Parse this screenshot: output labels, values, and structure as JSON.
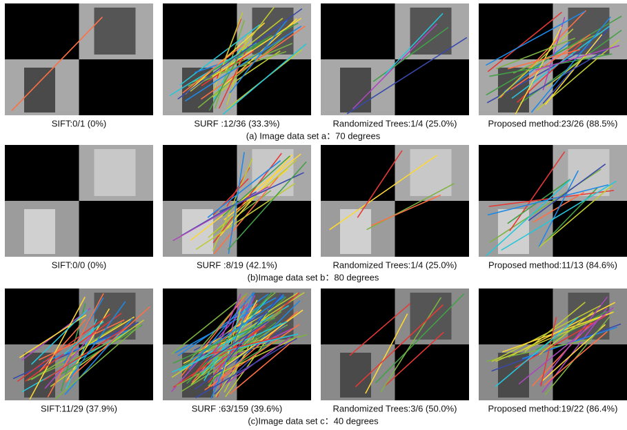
{
  "rows": [
    {
      "panels": [
        "SIFT:0/1 (0%)",
        "SURF :12/36 (33.3%)",
        "Randomized Trees:1/4 (25.0%)",
        "Proposed method:23/26 (88.5%)"
      ],
      "caption": "(a) Image data set a：70 degrees"
    },
    {
      "panels": [
        "SIFT:0/0 (0%)",
        "SURF :8/19 (42.1%)",
        "Randomized Trees:1/4 (25.0%)",
        "Proposed method:11/13 (84.6%)"
      ],
      "caption": "(b)Image data set b：80 degrees"
    },
    {
      "panels": [
        "SIFT:11/29 (37.9%)",
        "SURF :63/159 (39.6%)",
        "Randomized Trees:3/6 (50.0%)",
        "Proposed method:19/22 (86.4%)"
      ],
      "caption": "(c)Image data set c：40 degrees"
    }
  ]
}
